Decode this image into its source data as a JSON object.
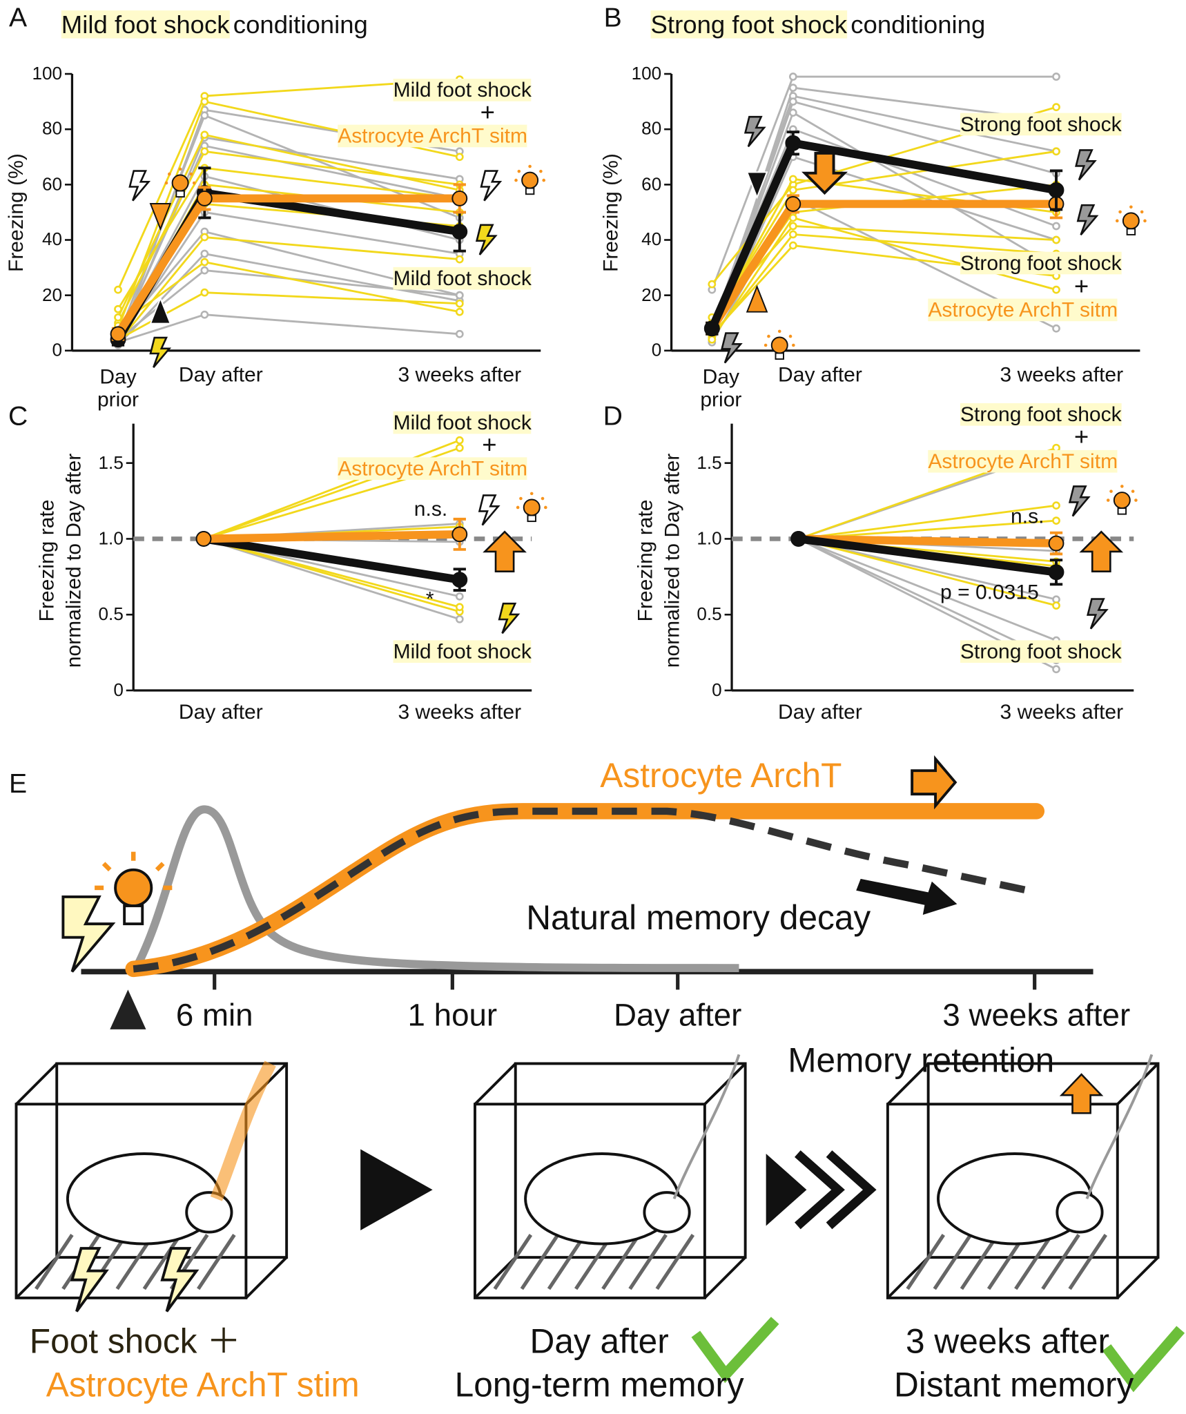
{
  "chart_data": [
    {
      "type": "line",
      "panel": "A",
      "title_parts": [
        "Mild foot shock",
        "conditioning"
      ],
      "categories": [
        "Day prior",
        "Day after",
        "3 weeks after"
      ],
      "ylabel": "Freezing (%)",
      "ylim": [
        0,
        100
      ],
      "yticks": [
        0,
        20,
        40,
        60,
        80,
        100
      ],
      "series": [
        {
          "color": "#b3b3b3",
          "values": [
            2,
            87,
            72
          ]
        },
        {
          "color": "#b3b3b3",
          "values": [
            3,
            77,
            62
          ]
        },
        {
          "color": "#b3b3b3",
          "values": [
            4,
            74,
            55
          ]
        },
        {
          "color": "#b3b3b3",
          "values": [
            5,
            63,
            40
          ]
        },
        {
          "color": "#b3b3b3",
          "values": [
            3,
            50,
            35
          ]
        },
        {
          "color": "#b3b3b3",
          "values": [
            6,
            43,
            20
          ]
        },
        {
          "color": "#b3b3b3",
          "values": [
            2,
            35,
            18
          ]
        },
        {
          "color": "#b3b3b3",
          "values": [
            4,
            29,
            20
          ]
        },
        {
          "color": "#b3b3b3",
          "values": [
            3,
            13,
            6
          ]
        },
        {
          "color": "#b3b3b3",
          "values": [
            5,
            85,
            48
          ]
        },
        {
          "color": "#f2d81c",
          "values": [
            22,
            92,
            98
          ]
        },
        {
          "color": "#f2d81c",
          "values": [
            8,
            90,
            70
          ]
        },
        {
          "color": "#f2d81c",
          "values": [
            10,
            72,
            60
          ]
        },
        {
          "color": "#f2d81c",
          "values": [
            15,
            66,
            55
          ]
        },
        {
          "color": "#f2d81c",
          "values": [
            5,
            60,
            50
          ]
        },
        {
          "color": "#f2d81c",
          "values": [
            7,
            53,
            45
          ]
        },
        {
          "color": "#f2d81c",
          "values": [
            3,
            41,
            33
          ]
        },
        {
          "color": "#f2d81c",
          "values": [
            9,
            32,
            14
          ]
        },
        {
          "color": "#f2d81c",
          "values": [
            4,
            21,
            17
          ]
        },
        {
          "color": "#f2d81c",
          "values": [
            12,
            78,
            58
          ]
        },
        {
          "color": "#111111",
          "mean": true,
          "values": [
            4,
            57,
            43
          ],
          "errors": [
            2,
            9,
            7
          ]
        },
        {
          "color": "#f7941d",
          "mean": true,
          "values": [
            6,
            55,
            55
          ],
          "errors": [
            2,
            4,
            5
          ]
        }
      ],
      "annotations": [
        {
          "text": "Mild foot shock",
          "color": "#111111",
          "highlight": true
        },
        {
          "text": "+",
          "color": "#111111",
          "highlight": false
        },
        {
          "text": "Astrocyte ArchT sitm",
          "color": "#f7941d",
          "highlight": true
        },
        {
          "text": "Mild foot shock",
          "color": "#111111",
          "highlight": true
        }
      ]
    },
    {
      "type": "line",
      "panel": "B",
      "title_parts": [
        "Strong foot shock",
        "conditioning"
      ],
      "categories": [
        "Day prior",
        "Day after",
        "3 weeks after"
      ],
      "ylabel": "Freezing (%)",
      "ylim": [
        0,
        100
      ],
      "yticks": [
        0,
        20,
        40,
        60,
        80,
        100
      ],
      "series": [
        {
          "color": "#b3b3b3",
          "values": [
            22,
            99,
            99
          ]
        },
        {
          "color": "#b3b3b3",
          "values": [
            5,
            95,
            83
          ]
        },
        {
          "color": "#b3b3b3",
          "values": [
            8,
            92,
            72
          ]
        },
        {
          "color": "#b3b3b3",
          "values": [
            6,
            90,
            64
          ]
        },
        {
          "color": "#b3b3b3",
          "values": [
            10,
            80,
            45
          ]
        },
        {
          "color": "#b3b3b3",
          "values": [
            4,
            70,
            40
          ]
        },
        {
          "color": "#b3b3b3",
          "values": [
            7,
            86,
            30
          ]
        },
        {
          "color": "#b3b3b3",
          "values": [
            3,
            55,
            8
          ]
        },
        {
          "color": "#f2d81c",
          "values": [
            24,
            60,
            88
          ]
        },
        {
          "color": "#f2d81c",
          "values": [
            10,
            58,
            72
          ]
        },
        {
          "color": "#f2d81c",
          "values": [
            8,
            50,
            60
          ]
        },
        {
          "color": "#f2d81c",
          "values": [
            12,
            45,
            40
          ]
        },
        {
          "color": "#f2d81c",
          "values": [
            5,
            42,
            35
          ]
        },
        {
          "color": "#f2d81c",
          "values": [
            6,
            38,
            27
          ]
        },
        {
          "color": "#f2d81c",
          "values": [
            9,
            62,
            50
          ]
        },
        {
          "color": "#f2d81c",
          "values": [
            4,
            48,
            22
          ]
        },
        {
          "color": "#f7941d",
          "mean": true,
          "values": [
            8,
            53,
            53
          ],
          "errors": [
            2,
            3,
            5
          ]
        },
        {
          "color": "#111111",
          "mean": true,
          "values": [
            8,
            75,
            58
          ],
          "errors": [
            2,
            4,
            7
          ]
        }
      ],
      "annotations": [
        {
          "text": "Strong foot shock",
          "color": "#111111",
          "highlight": true
        },
        {
          "text": "Strong foot shock",
          "color": "#111111",
          "highlight": true
        },
        {
          "text": "+",
          "color": "#111111",
          "highlight": false
        },
        {
          "text": "Astrocyte ArchT sitm",
          "color": "#f7941d",
          "highlight": true
        }
      ]
    },
    {
      "type": "line",
      "panel": "C",
      "categories": [
        "Day after",
        "3 weeks after"
      ],
      "ylabel": [
        "Freezing rate",
        "normalized to Day after"
      ],
      "ylim": [
        0,
        1.76
      ],
      "yticks": [
        0,
        0.5,
        {
          "value": 1,
          "label": "1.0"
        },
        1.5
      ],
      "refline": 1,
      "series": [
        {
          "color": "#b3b3b3",
          "values": [
            1,
            1.1
          ]
        },
        {
          "color": "#b3b3b3",
          "values": [
            1,
            0.98
          ]
        },
        {
          "color": "#b3b3b3",
          "values": [
            1,
            0.47
          ]
        },
        {
          "color": "#b3b3b3",
          "values": [
            1,
            0.62
          ]
        },
        {
          "color": "#b3b3b3",
          "values": [
            1,
            0.72
          ]
        },
        {
          "color": "#f2d81c",
          "values": [
            1,
            1.65
          ]
        },
        {
          "color": "#f2d81c",
          "values": [
            1,
            1.6
          ]
        },
        {
          "color": "#f2d81c",
          "values": [
            1,
            1.5
          ]
        },
        {
          "color": "#f2d81c",
          "values": [
            1,
            1.08
          ]
        },
        {
          "color": "#f2d81c",
          "values": [
            1,
            0.52
          ]
        },
        {
          "color": "#f2d81c",
          "values": [
            1,
            0.55
          ]
        },
        {
          "color": "#111111",
          "mean": true,
          "values": [
            1,
            0.73
          ],
          "errors": [
            0,
            0.07
          ]
        },
        {
          "color": "#f7941d",
          "mean": true,
          "values": [
            1,
            1.03
          ],
          "errors": [
            0,
            0.1
          ]
        }
      ],
      "annotations": [
        {
          "text": "Mild foot shock",
          "color": "#111111",
          "highlight": true
        },
        {
          "text": "+",
          "color": "#111111",
          "highlight": false
        },
        {
          "text": "Astrocyte ArchT sitm",
          "color": "#f7941d",
          "highlight": true
        },
        {
          "text": "n.s.",
          "color": "#111111",
          "highlight": false
        },
        {
          "text": "*",
          "color": "#111111",
          "highlight": false
        },
        {
          "text": "Mild foot shock",
          "color": "#111111",
          "highlight": true
        }
      ]
    },
    {
      "type": "line",
      "panel": "D",
      "categories": [
        "Day after",
        "3 weeks after"
      ],
      "ylabel": [
        "Freezing rate",
        "normalized to Day after"
      ],
      "ylim": [
        0,
        1.76
      ],
      "yticks": [
        0,
        0.5,
        {
          "value": 1,
          "label": "1.0"
        },
        1.5
      ],
      "refline": 1,
      "series": [
        {
          "color": "#b3b3b3",
          "values": [
            1,
            1.58
          ]
        },
        {
          "color": "#b3b3b3",
          "values": [
            1,
            0.92
          ]
        },
        {
          "color": "#b3b3b3",
          "values": [
            1,
            0.6
          ]
        },
        {
          "color": "#b3b3b3",
          "values": [
            1,
            0.33
          ]
        },
        {
          "color": "#b3b3b3",
          "values": [
            1,
            0.14
          ]
        },
        {
          "color": "#b3b3b3",
          "values": [
            1,
            0.2
          ]
        },
        {
          "color": "#f2d81c",
          "values": [
            1,
            1.6
          ]
        },
        {
          "color": "#f2d81c",
          "values": [
            1,
            1.22
          ]
        },
        {
          "color": "#f2d81c",
          "values": [
            1,
            1.12
          ]
        },
        {
          "color": "#f2d81c",
          "values": [
            1,
            0.82
          ]
        },
        {
          "color": "#f2d81c",
          "values": [
            1,
            0.56
          ]
        },
        {
          "color": "#f2d81c",
          "values": [
            1,
            0.85
          ]
        },
        {
          "color": "#f7941d",
          "mean": true,
          "values": [
            1,
            0.97
          ],
          "errors": [
            0,
            0.07
          ]
        },
        {
          "color": "#111111",
          "mean": true,
          "values": [
            1,
            0.78
          ],
          "errors": [
            0,
            0.08
          ]
        }
      ],
      "annotations": [
        {
          "text": "Strong foot shock",
          "color": "#111111",
          "highlight": true
        },
        {
          "text": "+",
          "color": "#111111",
          "highlight": false
        },
        {
          "text": "Astrocyte ArchT sitm",
          "color": "#f7941d",
          "highlight": true
        },
        {
          "text": "n.s.",
          "color": "#111111",
          "highlight": false
        },
        {
          "text": "p = 0.0315",
          "color": "#111111",
          "highlight": false
        },
        {
          "text": "Strong foot shock",
          "color": "#111111",
          "highlight": true
        }
      ]
    }
  ],
  "diagram": {
    "panel": "E",
    "curve_label": "Astrocyte ArchT",
    "decay_label": "Natural memory decay",
    "timeline": [
      "6 min",
      "1 hour",
      "Day after",
      "3 weeks after"
    ],
    "retention_label": "Memory retention",
    "stages": [
      {
        "lines": [
          "Foot shock ＋",
          "Astrocyte ArchT stim"
        ]
      },
      {
        "lines": [
          "Day after",
          "Long-term memory"
        ]
      },
      {
        "lines": [
          "3 weeks after",
          "Distant memory"
        ]
      }
    ]
  }
}
